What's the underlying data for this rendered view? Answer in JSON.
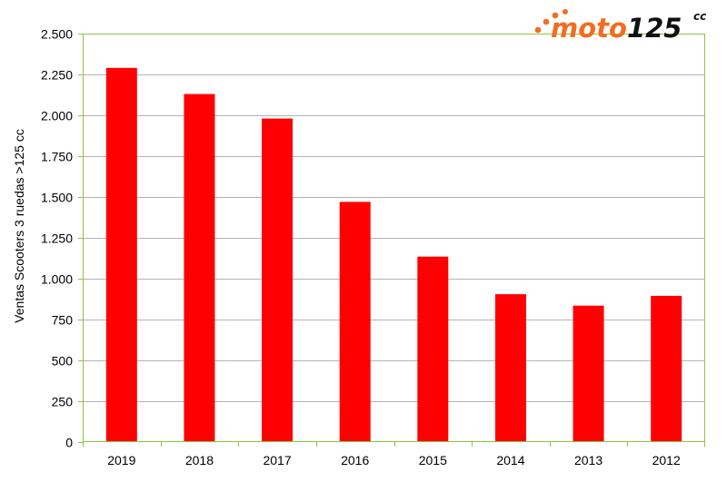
{
  "logo": {
    "text_main": "moto",
    "text_num": "125",
    "text_sup": "cc",
    "colors": {
      "orange": "#f26c21",
      "black": "#111111"
    }
  },
  "chart_data": {
    "type": "bar",
    "categories": [
      "2019",
      "2018",
      "2017",
      "2016",
      "2015",
      "2014",
      "2013",
      "2012"
    ],
    "values": [
      2290,
      2130,
      1980,
      1470,
      1135,
      905,
      835,
      895
    ],
    "title": "",
    "xlabel": "",
    "ylabel": "Ventas Scooters 3 ruedas >125 cc",
    "ylim": [
      0,
      2500
    ],
    "yticks": [
      0,
      250,
      500,
      750,
      1000,
      1250,
      1500,
      1750,
      2000,
      2250,
      2500
    ],
    "ytick_labels": [
      "0",
      "250",
      "500",
      "750",
      "1.000",
      "1.250",
      "1.500",
      "1.750",
      "2.000",
      "2.250",
      "2.500"
    ],
    "grid": true,
    "legend": "none",
    "colors": {
      "bar": "#ff0000",
      "plot_border": "#8cc63f",
      "grid": "#b3b3b3"
    }
  }
}
